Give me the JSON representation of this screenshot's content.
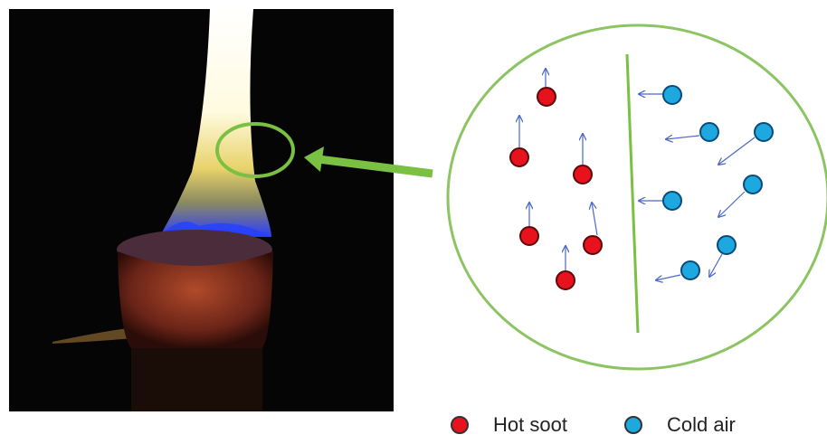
{
  "legend": {
    "items": [
      {
        "label": "Hot soot",
        "color": "#e8121c"
      },
      {
        "label": "Cold air",
        "color": "#1ea8e0"
      }
    ]
  }
}
